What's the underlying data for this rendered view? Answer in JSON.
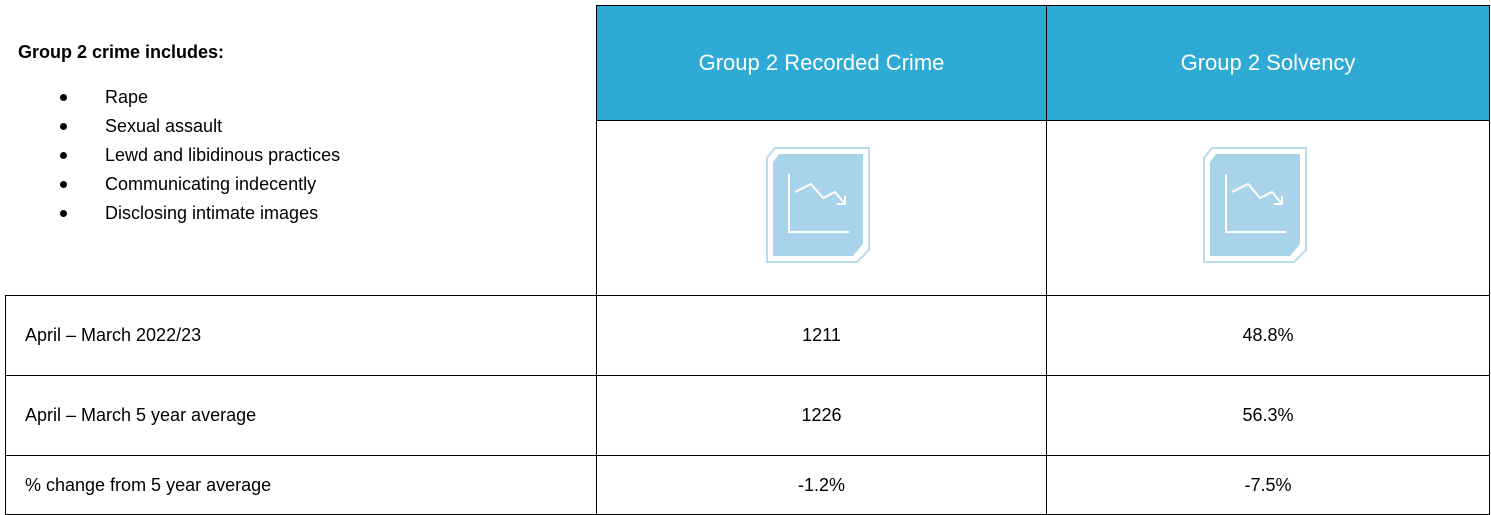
{
  "intro": {
    "title": "Group 2 crime includes:",
    "items": [
      "Rape",
      "Sexual assault",
      "Lewd and libidinous practices",
      "Communicating indecently",
      "Disclosing intimate images"
    ]
  },
  "table": {
    "headers": [
      "Group 2 Recorded Crime",
      "Group 2 Solvency"
    ],
    "rows": [
      [
        "April – March 2022/23",
        "1211",
        "48.8%"
      ],
      [
        "April – March 5 year average",
        "1226",
        "56.3%"
      ],
      [
        "% change from 5 year average",
        "-1.2%",
        "-7.5%"
      ]
    ]
  }
}
